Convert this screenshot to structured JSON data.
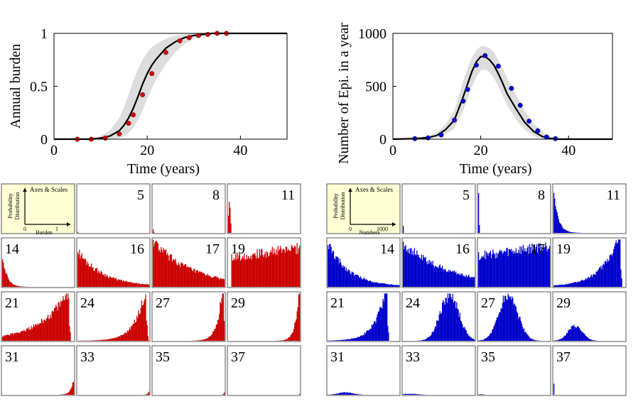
{
  "chart_data": [
    {
      "type": "line",
      "id": "burden-curve",
      "xlabel": "Time (years)",
      "ylabel": "Annual burden",
      "xlim": [
        0,
        50
      ],
      "ylim": [
        0,
        1
      ],
      "x_ticks": [
        "0",
        "20",
        "40"
      ],
      "y_ticks": [
        "0",
        "0.5",
        "1"
      ],
      "color": "#dd0000",
      "mean_line": {
        "x": [
          0,
          5,
          8,
          10,
          12,
          14,
          15,
          16,
          17,
          18,
          19,
          20,
          21,
          22,
          24,
          26,
          28,
          30,
          32,
          34,
          36,
          40,
          45,
          50
        ],
        "y": [
          0,
          0.0,
          0.0,
          0.01,
          0.03,
          0.08,
          0.13,
          0.2,
          0.29,
          0.4,
          0.52,
          0.62,
          0.7,
          0.76,
          0.86,
          0.92,
          0.96,
          0.98,
          0.99,
          1.0,
          1.0,
          1.0,
          1.0,
          1.0
        ]
      },
      "band_lower": [
        0,
        0.0,
        0.0,
        0.0,
        0.0,
        0.01,
        0.03,
        0.06,
        0.11,
        0.18,
        0.27,
        0.38,
        0.48,
        0.57,
        0.71,
        0.82,
        0.9,
        0.95,
        0.98,
        0.99,
        1.0,
        1.0,
        1.0,
        1.0
      ],
      "band_upper": [
        0,
        0.0,
        0.01,
        0.03,
        0.08,
        0.2,
        0.3,
        0.42,
        0.55,
        0.66,
        0.75,
        0.82,
        0.87,
        0.9,
        0.95,
        0.98,
        0.99,
        1.0,
        1.0,
        1.0,
        1.0,
        1.0,
        1.0,
        1.0
      ],
      "markers": {
        "x": [
          5,
          8,
          11,
          14,
          16,
          17,
          19,
          21,
          24,
          27,
          29,
          31,
          33,
          35,
          37
        ],
        "y": [
          0.0,
          0.0,
          0.01,
          0.05,
          0.15,
          0.23,
          0.42,
          0.62,
          0.82,
          0.93,
          0.96,
          0.98,
          0.99,
          1.0,
          1.0
        ]
      }
    },
    {
      "type": "line",
      "id": "epi-curve",
      "xlabel": "Time (years)",
      "ylabel": "Number of Epi. in a year",
      "xlim": [
        0,
        50
      ],
      "ylim": [
        0,
        1000
      ],
      "x_ticks": [
        "0",
        "20",
        "40"
      ],
      "y_ticks": [
        "0",
        "500",
        "1000"
      ],
      "color": "#0000dd",
      "mean_line": {
        "x": [
          0,
          5,
          8,
          10,
          12,
          14,
          16,
          17,
          18,
          19,
          20,
          21,
          22,
          23,
          24,
          25,
          26,
          28,
          30,
          32,
          34,
          36,
          38,
          40,
          45,
          50
        ],
        "y": [
          0,
          5,
          15,
          35,
          90,
          180,
          400,
          520,
          640,
          730,
          780,
          780,
          750,
          700,
          620,
          530,
          430,
          290,
          160,
          75,
          25,
          5,
          0,
          0,
          0,
          0
        ]
      },
      "band_lower": [
        0,
        0,
        5,
        15,
        45,
        100,
        270,
        380,
        500,
        590,
        650,
        660,
        630,
        580,
        500,
        410,
        320,
        190,
        90,
        30,
        5,
        0,
        0,
        0,
        0,
        0
      ],
      "band_upper": [
        0,
        10,
        30,
        60,
        140,
        270,
        550,
        670,
        770,
        840,
        880,
        880,
        860,
        820,
        750,
        670,
        580,
        420,
        270,
        150,
        70,
        25,
        5,
        0,
        0,
        0
      ],
      "markers": {
        "x": [
          5,
          8,
          11,
          14,
          16,
          17,
          19,
          21,
          24,
          27,
          29,
          31,
          33,
          35,
          37
        ],
        "y": [
          5,
          12,
          40,
          180,
          360,
          470,
          700,
          790,
          690,
          480,
          320,
          170,
          80,
          20,
          5
        ]
      }
    },
    {
      "type": "bar",
      "id": "burden-histograms",
      "legend_title": "Axes & Scales",
      "legend_ylabel": [
        "Probability",
        "Distribution"
      ],
      "legend_xlabel": "Burden",
      "legend_ticks": [
        "0",
        "1"
      ],
      "color": "#cc0000",
      "panels": [
        {
          "label": "5",
          "shape": "spike",
          "pos": 0.0,
          "width": 0.01,
          "amp": 0.05
        },
        {
          "label": "8",
          "shape": "spike",
          "pos": 0.0,
          "width": 0.02,
          "amp": 0.1
        },
        {
          "label": "11",
          "shape": "spike",
          "pos": 0.02,
          "width": 0.025,
          "amp": 0.75
        },
        {
          "label": "14",
          "shape": "decay",
          "pos": 0.0,
          "width": 0.06,
          "amp": 0.7
        },
        {
          "label": "16",
          "shape": "decay",
          "pos": 0.0,
          "width": 0.35,
          "amp": 0.75
        },
        {
          "label": "17",
          "shape": "decay",
          "pos": 0.0,
          "width": 0.55,
          "amp": 0.95
        },
        {
          "label": "19",
          "shape": "flat",
          "pos": 0.05,
          "width": 0.95,
          "amp": 0.8
        },
        {
          "label": "21",
          "shape": "ramp",
          "pos": 0.9,
          "width": 0.4,
          "amp": 0.95
        },
        {
          "label": "24",
          "shape": "ramp",
          "pos": 0.93,
          "width": 0.15,
          "amp": 0.95
        },
        {
          "label": "27",
          "shape": "ramp",
          "pos": 0.96,
          "width": 0.07,
          "amp": 0.95
        },
        {
          "label": "29",
          "shape": "ramp",
          "pos": 0.98,
          "width": 0.05,
          "amp": 0.95
        },
        {
          "label": "31",
          "shape": "ramp",
          "pos": 1.0,
          "width": 0.04,
          "amp": 0.35
        },
        {
          "label": "33",
          "shape": "ramp",
          "pos": 1.0,
          "width": 0.02,
          "amp": 0.08
        },
        {
          "label": "35",
          "shape": "ramp",
          "pos": 1.0,
          "width": 0.01,
          "amp": 0.08
        },
        {
          "label": "37",
          "shape": "ramp",
          "pos": 1.0,
          "width": 0.005,
          "amp": 0.05
        }
      ]
    },
    {
      "type": "bar",
      "id": "epi-histograms",
      "legend_title": "Axes & Scales",
      "legend_ylabel": [
        "Probability",
        "Distribution"
      ],
      "legend_xlabel": "Numbers",
      "legend_ticks": [
        "0",
        "1000"
      ],
      "color": "#0000cc",
      "panels": [
        {
          "label": "5",
          "shape": "spike",
          "pos": 0.0,
          "width": 0.01,
          "amp": 0.3
        },
        {
          "label": "8",
          "shape": "spike",
          "pos": 0.0,
          "width": 0.02,
          "amp": 1.0
        },
        {
          "label": "11",
          "shape": "decay",
          "pos": 0.0,
          "width": 0.06,
          "amp": 1.0
        },
        {
          "label": "14",
          "shape": "decay",
          "pos": 0.0,
          "width": 0.3,
          "amp": 0.9
        },
        {
          "label": "16",
          "shape": "decay",
          "pos": 0.0,
          "width": 0.65,
          "amp": 0.9
        },
        {
          "label": "17",
          "shape": "flat",
          "pos": 0.0,
          "width": 1.0,
          "amp": 0.85
        },
        {
          "label": "19",
          "shape": "ramp",
          "pos": 0.9,
          "width": 0.25,
          "amp": 1.0
        },
        {
          "label": "21",
          "shape": "ramp",
          "pos": 0.8,
          "width": 0.15,
          "amp": 1.0
        },
        {
          "label": "24",
          "shape": "gauss",
          "pos": 0.65,
          "width": 0.13,
          "amp": 0.95
        },
        {
          "label": "27",
          "shape": "gauss",
          "pos": 0.42,
          "width": 0.13,
          "amp": 0.95
        },
        {
          "label": "29",
          "shape": "gauss",
          "pos": 0.3,
          "width": 0.1,
          "amp": 0.3
        },
        {
          "label": "31",
          "shape": "gauss",
          "pos": 0.25,
          "width": 0.1,
          "amp": 0.05
        },
        {
          "label": "33",
          "shape": "gauss",
          "pos": 0.1,
          "width": 0.1,
          "amp": 0.02
        },
        {
          "label": "35",
          "shape": "gauss",
          "pos": 0.04,
          "width": 0.03,
          "amp": 0.01
        },
        {
          "label": "37",
          "shape": "spike",
          "pos": 0.0,
          "width": 0.01,
          "amp": 0.6
        }
      ]
    }
  ]
}
